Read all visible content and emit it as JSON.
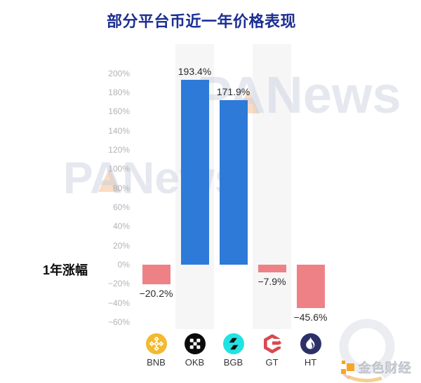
{
  "header": {
    "title": "部分平台币近一年价格表现"
  },
  "y_axis": {
    "name": "1年涨幅",
    "tick_labels": [
      "200%",
      "180%",
      "160%",
      "140%",
      "120%",
      "100%",
      "80%",
      "60%",
      "40%",
      "20%",
      "0%",
      "−20%",
      "−40%",
      "−60%"
    ]
  },
  "watermarks": {
    "panews": "PANews",
    "jinse_brand": "金色财经"
  },
  "chart_data": {
    "type": "bar",
    "title": "部分平台币近一年价格表现",
    "categories": [
      "BNB",
      "OKB",
      "BGB",
      "GT",
      "HT"
    ],
    "values": [
      -20.2,
      193.4,
      171.9,
      -7.9,
      -45.6
    ],
    "value_labels": [
      "−20.2%",
      "193.4%",
      "171.9%",
      "−7.9%",
      "−45.6%"
    ],
    "ylabel": "1年涨幅",
    "ylim": [
      -60,
      200
    ],
    "ytick_step": 20,
    "ytick_suffix": "%",
    "grid": false,
    "legend": "none",
    "split_area": "alternating",
    "colors": {
      "positive_bar": "#2E7AD8",
      "negative_bar": "#EE8186",
      "title": "#1C2F92",
      "axis_label": "#B3B3B7",
      "value_label": "#2B2B2B",
      "split_band": "#F6F6F7"
    },
    "icon_colors": {
      "BNB": "#F3BA2F",
      "OKB": "#0B0B0B",
      "BGB": "#22E2E2",
      "GT": "#D9494F",
      "HT": "#2B3168"
    }
  }
}
